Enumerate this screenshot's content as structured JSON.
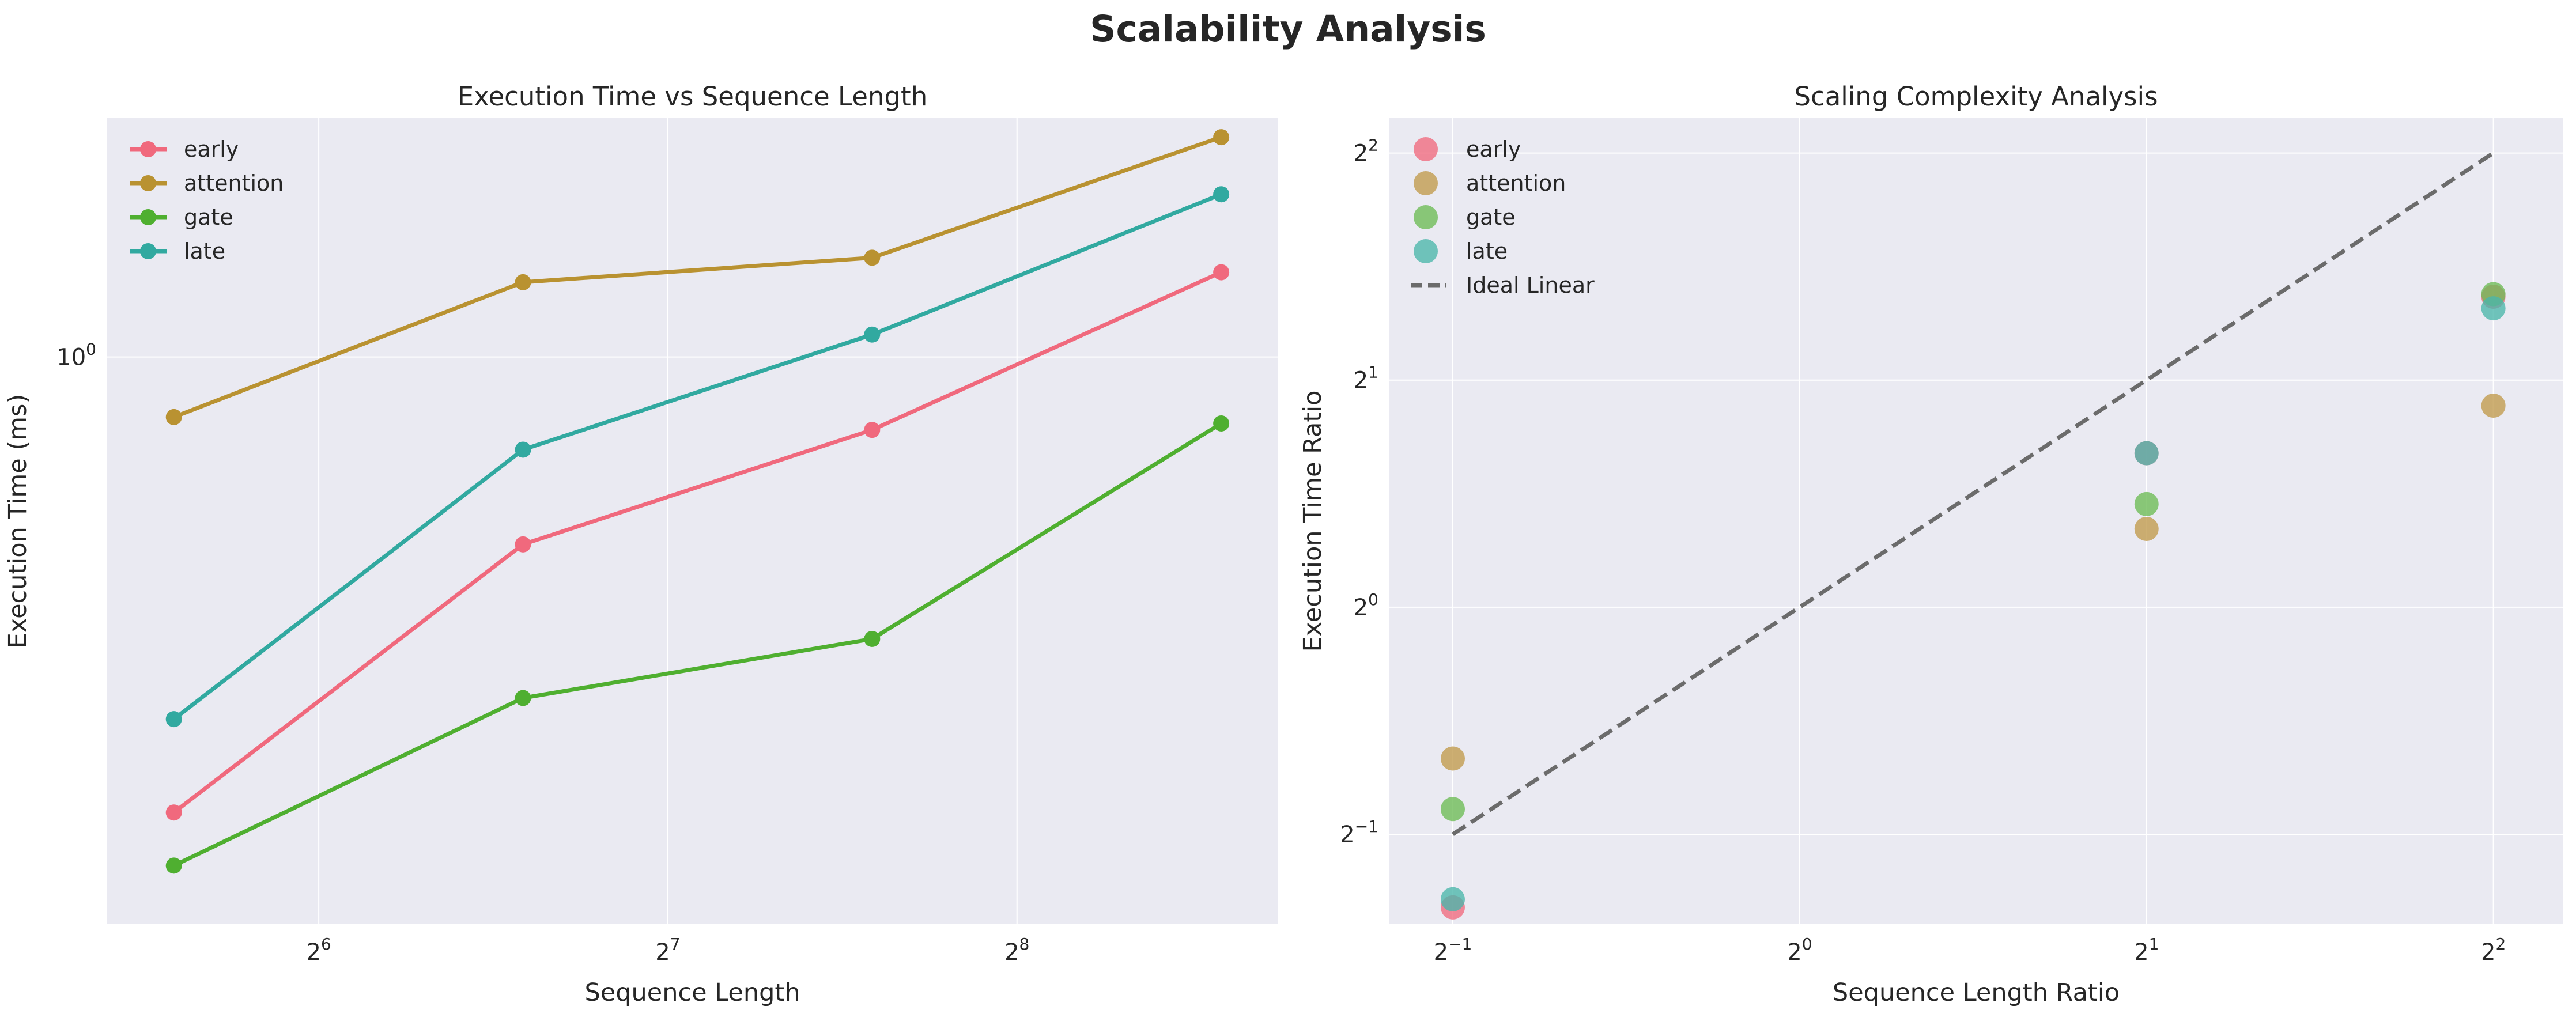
{
  "suptitle": "Scalability Analysis",
  "chart_data": [
    {
      "type": "line",
      "title": "Execution Time vs Sequence Length",
      "xlabel": "Sequence Length",
      "ylabel": "Execution Time (ms)",
      "xscale": "log2",
      "yscale": "log",
      "x": [
        48,
        96,
        192,
        384
      ],
      "xlim": [
        42,
        430
      ],
      "ylim": [
        0.37,
        1.52
      ],
      "xticks": [
        {
          "value": 64,
          "base": "2",
          "exp": "6"
        },
        {
          "value": 128,
          "base": "2",
          "exp": "7"
        },
        {
          "value": 256,
          "base": "2",
          "exp": "8"
        }
      ],
      "yticks": [
        {
          "value": 1.0,
          "base": "10",
          "exp": "0"
        }
      ],
      "grid": true,
      "legend": "top-left",
      "series": [
        {
          "name": "early",
          "color": "#f0697d",
          "values": [
            0.45,
            0.72,
            0.88,
            1.16
          ]
        },
        {
          "name": "attention",
          "color": "#b99231",
          "values": [
            0.9,
            1.14,
            1.19,
            1.47
          ]
        },
        {
          "name": "gate",
          "color": "#4faf30",
          "values": [
            0.41,
            0.55,
            0.61,
            0.89
          ]
        },
        {
          "name": "late",
          "color": "#31a9a0",
          "values": [
            0.53,
            0.85,
            1.04,
            1.33
          ]
        }
      ]
    },
    {
      "type": "scatter",
      "title": "Scaling Complexity Analysis",
      "xlabel": "Sequence Length Ratio",
      "ylabel": "Execution Time Ratio",
      "xscale": "log2",
      "yscale": "log2",
      "xlim": [
        0.44,
        4.6
      ],
      "ylim": [
        0.38,
        4.45
      ],
      "xticks": [
        {
          "value": 0.5,
          "base": "2",
          "exp": "−1"
        },
        {
          "value": 1,
          "base": "2",
          "exp": "0"
        },
        {
          "value": 2,
          "base": "2",
          "exp": "1"
        },
        {
          "value": 4,
          "base": "2",
          "exp": "2"
        }
      ],
      "yticks": [
        {
          "value": 0.5,
          "base": "2",
          "exp": "−1"
        },
        {
          "value": 1,
          "base": "2",
          "exp": "0"
        },
        {
          "value": 2,
          "base": "2",
          "exp": "1"
        },
        {
          "value": 4,
          "base": "2",
          "exp": "2"
        }
      ],
      "grid": true,
      "legend": "top-left",
      "x": [
        0.5,
        2,
        4
      ],
      "series": [
        {
          "name": "early",
          "color": "#f0697d",
          "values": [
            0.4,
            1.6,
            2.58
          ]
        },
        {
          "name": "attention",
          "color": "#c09a4b",
          "values": [
            0.63,
            1.27,
            1.85
          ]
        },
        {
          "name": "gate",
          "color": "#6bbb55",
          "values": [
            0.54,
            1.37,
            2.6
          ]
        },
        {
          "name": "late",
          "color": "#4ab6ab",
          "values": [
            0.41,
            1.6,
            2.49
          ]
        }
      ],
      "reference_line": {
        "name": "Ideal Linear",
        "color": "#6b6b6b",
        "style": "dashed",
        "x": [
          0.5,
          4
        ],
        "y": [
          0.5,
          4
        ]
      }
    }
  ]
}
